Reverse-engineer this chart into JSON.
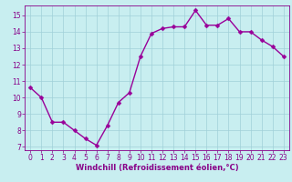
{
  "x": [
    0,
    1,
    2,
    3,
    4,
    5,
    6,
    7,
    8,
    9,
    10,
    11,
    12,
    13,
    14,
    15,
    16,
    17,
    18,
    19,
    20,
    21,
    22,
    23
  ],
  "y": [
    10.6,
    10.0,
    8.5,
    8.5,
    8.0,
    7.5,
    7.1,
    8.3,
    9.7,
    10.3,
    12.5,
    13.9,
    14.2,
    14.3,
    14.3,
    15.3,
    14.4,
    14.4,
    14.8,
    14.0,
    14.0,
    13.5,
    13.1,
    12.5
  ],
  "line_color": "#990099",
  "marker": "D",
  "markersize": 2.5,
  "linewidth": 1.0,
  "xlabel": "Windchill (Refroidissement éolien,°C)",
  "xlabel_fontsize": 6.0,
  "xlim": [
    -0.5,
    23.5
  ],
  "ylim": [
    6.8,
    15.6
  ],
  "yticks": [
    7,
    8,
    9,
    10,
    11,
    12,
    13,
    14,
    15
  ],
  "xticks": [
    0,
    1,
    2,
    3,
    4,
    5,
    6,
    7,
    8,
    9,
    10,
    11,
    12,
    13,
    14,
    15,
    16,
    17,
    18,
    19,
    20,
    21,
    22,
    23
  ],
  "background_color": "#c8eef0",
  "grid_color": "#a0d0d8",
  "line_grid_color": "#b0d8dc",
  "tick_color": "#880088",
  "tick_fontsize": 5.5,
  "tick_label_color": "#880088"
}
